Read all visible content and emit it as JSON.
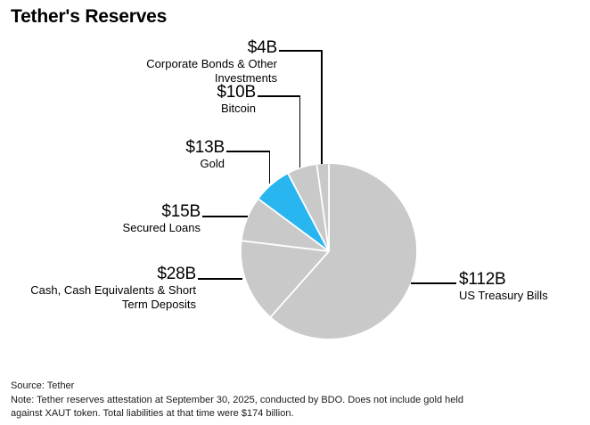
{
  "title": "Tether's Reserves",
  "colors": {
    "slice_default": "#c9c9c9",
    "slice_highlight": "#29b6f0",
    "leader_line": "#000000",
    "text": "#000000",
    "background": "#ffffff"
  },
  "chart_data": {
    "type": "pie",
    "title": "Tether's Reserves",
    "unit": "USD billions",
    "total": 182,
    "start_angle": "12 o'clock, clockwise",
    "legend": "none (direct callout labels)",
    "slices": [
      {
        "id": "treasury",
        "label": "US Treasury Bills",
        "display_value": "$112B",
        "value": 112,
        "color": "#c9c9c9"
      },
      {
        "id": "cash",
        "label": "Cash, Cash Equivalents & Short Term Deposits",
        "display_value": "$28B",
        "value": 28,
        "color": "#c9c9c9"
      },
      {
        "id": "secured-loans",
        "label": "Secured Loans",
        "display_value": "$15B",
        "value": 15,
        "color": "#c9c9c9"
      },
      {
        "id": "gold",
        "label": "Gold",
        "display_value": "$13B",
        "value": 13,
        "color": "#29b6f0"
      },
      {
        "id": "bitcoin",
        "label": "Bitcoin",
        "display_value": "$10B",
        "value": 10,
        "color": "#c9c9c9"
      },
      {
        "id": "corp-bonds",
        "label": "Corporate Bonds & Other Investments",
        "display_value": "$4B",
        "value": 4,
        "color": "#c9c9c9"
      }
    ]
  },
  "callouts": {
    "corp_bonds": {
      "value": "$4B",
      "lines": [
        "Corporate Bonds & Other",
        "Investments"
      ]
    },
    "bitcoin": {
      "value": "$10B",
      "lines": [
        "Bitcoin"
      ]
    },
    "gold": {
      "value": "$13B",
      "lines": [
        "Gold"
      ]
    },
    "secured_loans": {
      "value": "$15B",
      "lines": [
        "Secured Loans"
      ]
    },
    "cash": {
      "value": "$28B",
      "lines": [
        "Cash, Cash Equivalents & Short",
        "Term Deposits"
      ]
    },
    "treasury": {
      "value": "$112B",
      "lines": [
        "US Treasury Bills"
      ]
    }
  },
  "footer": {
    "source": "Source: Tether",
    "note_lines": [
      "Note: Tether reserves attestation at September 30, 2025, conducted by BDO. Does not include gold held",
      "against XAUT token. Total liabilities at that time were $174 billion."
    ]
  }
}
